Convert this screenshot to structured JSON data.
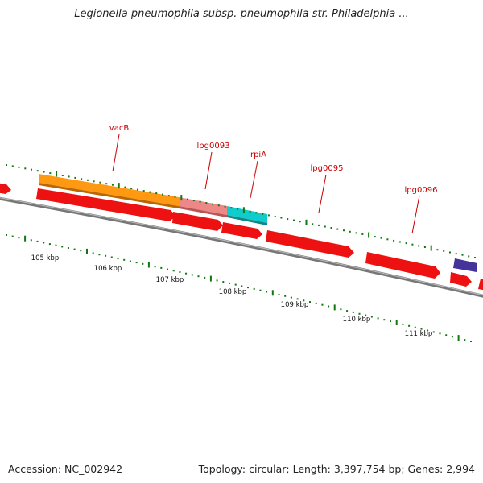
{
  "title": "Legionella pneumophila subsp. pneumophila str. Philadelphia ...",
  "footer": {
    "accession": "Accession: NC_002942",
    "summary": "Topology: circular; Length: 3,397,754 bp; Genes: 2,994"
  },
  "colors": {
    "backbone": "#777777",
    "cds": "#ee1111",
    "gene_orange": "#ff9911",
    "gene_pink": "#ee8888",
    "gene_cyan": "#11cccc",
    "gene_purple": "#443399",
    "tick_major": "#117711",
    "tick_minor": "#117711",
    "label": "#cc0000"
  },
  "gene_labels": [
    "vacB",
    "lpg0093",
    "rpiA",
    "lpg0095",
    "lpg0096"
  ],
  "kbp_labels": [
    "105 kbp",
    "106 kbp",
    "107 kbp",
    "108 kbp",
    "109 kbp",
    "110 kbp",
    "111 kbp"
  ]
}
